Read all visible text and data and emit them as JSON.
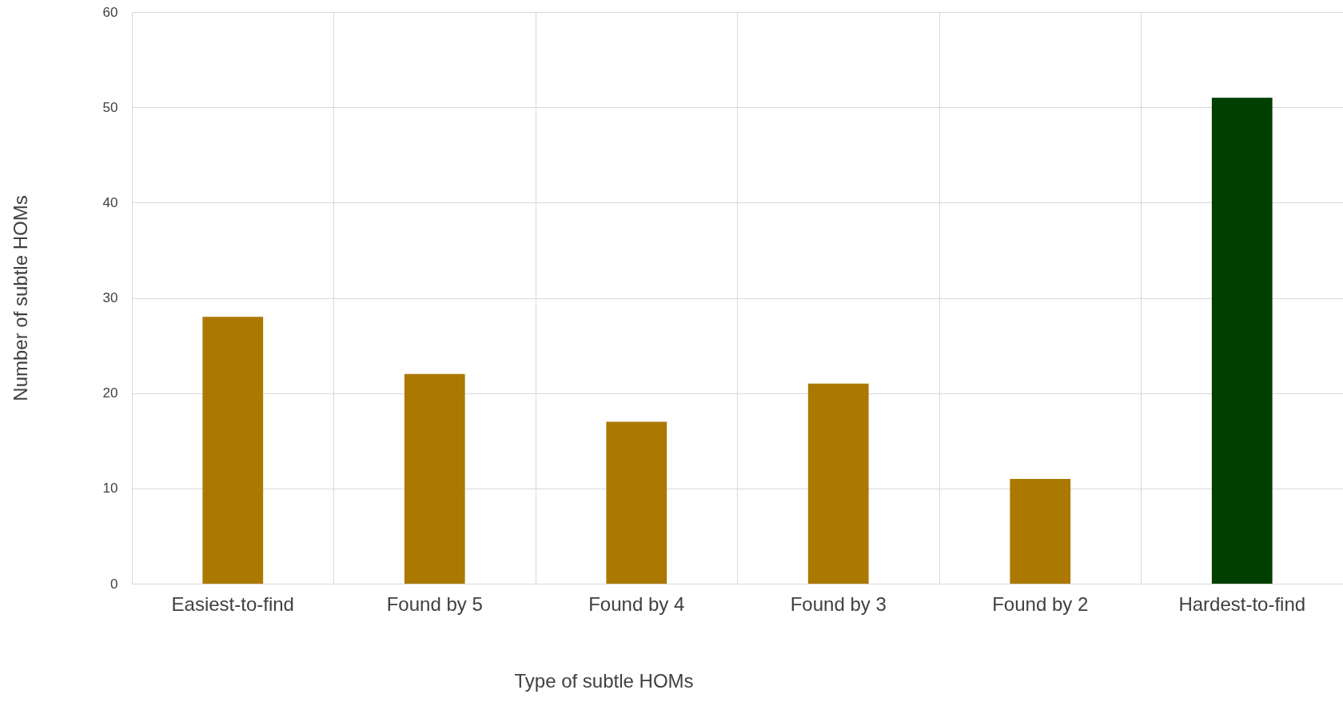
{
  "chart_data": {
    "type": "bar",
    "xlabel": "Type of subtle HOMs",
    "ylabel": "Number of subtle HOMs",
    "categories": [
      "Easiest-to-find",
      "Found by 5",
      "Found by 4",
      "Found by 3",
      "Found by 2",
      "Hardest-to-find"
    ],
    "values": [
      28,
      22,
      17,
      21,
      11,
      51
    ],
    "colors": [
      "#ab7800",
      "#ab7800",
      "#ab7800",
      "#ab7800",
      "#ab7800",
      "#003f00"
    ],
    "ylim": [
      0,
      60
    ],
    "yticks": [
      0,
      10,
      20,
      30,
      40,
      50,
      60
    ],
    "grid": true
  }
}
